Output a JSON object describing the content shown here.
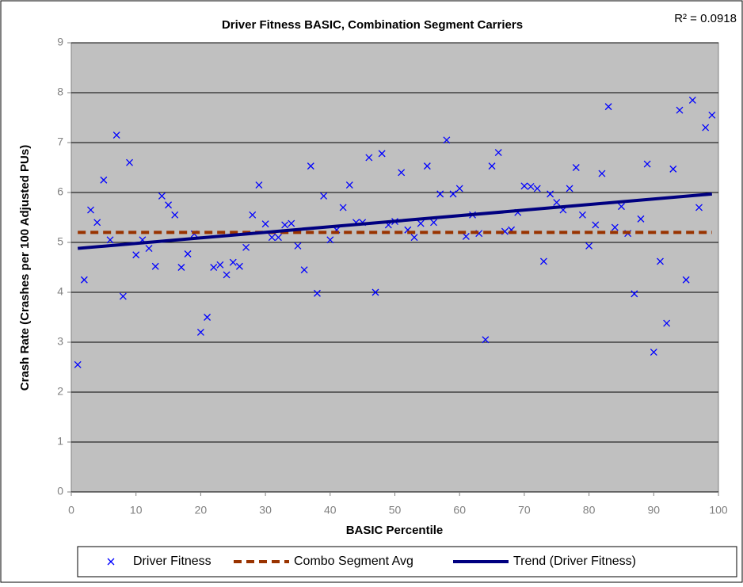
{
  "chart_data": {
    "type": "scatter",
    "title": "Driver Fitness BASIC, Combination Segment Carriers",
    "annotation": "R² = 0.0918",
    "x_label": "BASIC Percentile",
    "y_label": "Crash Rate (Crashes per 100 Adjusted PUs)",
    "xlim": [
      0,
      100
    ],
    "xticks": [
      0,
      10,
      20,
      30,
      40,
      50,
      60,
      70,
      80,
      90,
      100
    ],
    "ylim": [
      0,
      9
    ],
    "yticks": [
      0,
      1,
      2,
      3,
      4,
      5,
      6,
      7,
      8,
      9
    ],
    "grid": true,
    "legend": "bottom",
    "series": [
      {
        "name": "Driver Fitness",
        "style": "marker",
        "color": "#0000ff",
        "x": [
          1,
          2,
          3,
          4,
          5,
          6,
          7,
          8,
          9,
          10,
          11,
          12,
          13,
          14,
          15,
          16,
          17,
          18,
          19,
          20,
          21,
          22,
          23,
          24,
          25,
          26,
          27,
          28,
          29,
          30,
          31,
          32,
          33,
          34,
          35,
          36,
          37,
          38,
          39,
          40,
          41,
          42,
          43,
          44,
          45,
          46,
          47,
          48,
          49,
          50,
          51,
          52,
          53,
          54,
          55,
          56,
          57,
          58,
          59,
          60,
          61,
          62,
          63,
          64,
          65,
          66,
          67,
          68,
          69,
          70,
          71,
          72,
          73,
          74,
          75,
          76,
          77,
          78,
          79,
          80,
          81,
          82,
          83,
          84,
          85,
          86,
          87,
          88,
          89,
          90,
          91,
          92,
          93,
          94,
          95,
          96,
          97,
          98,
          99
        ],
        "values": [
          2.55,
          4.25,
          5.65,
          5.4,
          6.25,
          5.05,
          7.15,
          3.92,
          6.6,
          4.75,
          5.05,
          4.88,
          4.52,
          5.93,
          5.75,
          5.55,
          4.5,
          4.77,
          5.17,
          3.2,
          3.5,
          4.5,
          4.55,
          4.35,
          4.6,
          4.52,
          4.9,
          5.55,
          6.15,
          5.37,
          5.1,
          5.1,
          5.35,
          5.38,
          4.93,
          4.45,
          6.53,
          3.98,
          5.93,
          5.05,
          5.25,
          5.7,
          6.15,
          5.4,
          5.4,
          6.7,
          4.0,
          6.78,
          5.35,
          5.42,
          6.4,
          5.25,
          5.1,
          5.38,
          6.53,
          5.4,
          5.97,
          7.05,
          5.97,
          6.08,
          5.12,
          5.55,
          5.18,
          3.05,
          6.53,
          6.8,
          5.22,
          5.25,
          5.6,
          6.13,
          6.12,
          6.08,
          4.62,
          5.97,
          5.8,
          5.65,
          6.08,
          6.5,
          5.55,
          4.93,
          5.35,
          6.38,
          7.72,
          5.3,
          5.72,
          5.18,
          3.97,
          5.47,
          6.57,
          2.8,
          4.62,
          3.38,
          6.47,
          7.65,
          4.25,
          7.85,
          5.7,
          7.3,
          7.55
        ]
      },
      {
        "name": "Combo Segment Avg",
        "style": "dashed",
        "color": "#993300",
        "x": [
          1,
          99
        ],
        "values": [
          5.2,
          5.2
        ]
      },
      {
        "name": "Trend (Driver Fitness)",
        "style": "solid",
        "color": "#000080",
        "x": [
          1,
          99
        ],
        "values": [
          4.88,
          5.97
        ]
      }
    ]
  }
}
